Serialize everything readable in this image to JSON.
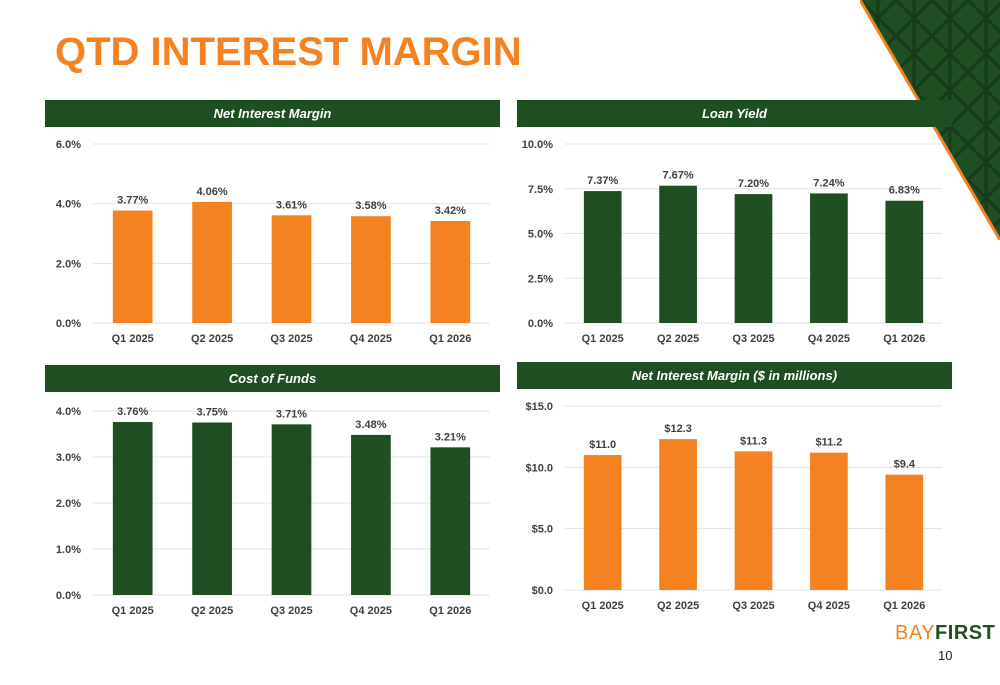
{
  "slide": {
    "title": "QTD INTEREST MARGIN",
    "page_number": "10",
    "logo_part1": "BAY",
    "logo_part2": "FIRST"
  },
  "colors": {
    "orange": "#f58220",
    "green": "#1f4e23"
  },
  "chart_data": [
    {
      "id": "net-interest-margin",
      "type": "bar",
      "title": "Net Interest Margin",
      "categories": [
        "Q1 2025",
        "Q2 2025",
        "Q3 2025",
        "Q4 2025",
        "Q1 2026"
      ],
      "values": [
        3.77,
        4.06,
        3.61,
        3.58,
        3.42
      ],
      "labels": [
        "3.77%",
        "4.06%",
        "3.61%",
        "3.58%",
        "3.42%"
      ],
      "ylim": [
        0,
        6
      ],
      "ticks": [
        0,
        2,
        4,
        6
      ],
      "tick_labels": [
        "0.0%",
        "2.0%",
        "4.0%",
        "6.0%"
      ],
      "color": "#f58220",
      "grid": true
    },
    {
      "id": "loan-yield",
      "type": "bar",
      "title": "Loan Yield",
      "categories": [
        "Q1 2025",
        "Q2 2025",
        "Q3 2025",
        "Q4 2025",
        "Q1 2026"
      ],
      "values": [
        7.37,
        7.67,
        7.2,
        7.24,
        6.83
      ],
      "labels": [
        "7.37%",
        "7.67%",
        "7.20%",
        "7.24%",
        "6.83%"
      ],
      "ylim": [
        0,
        10
      ],
      "ticks": [
        0,
        2.5,
        5,
        7.5,
        10
      ],
      "tick_labels": [
        "0.0%",
        "2.5%",
        "5.0%",
        "7.5%",
        "10.0%"
      ],
      "color": "#1f4e23",
      "grid": true
    },
    {
      "id": "cost-of-funds",
      "type": "bar",
      "title": "Cost of Funds",
      "categories": [
        "Q1 2025",
        "Q2 2025",
        "Q3 2025",
        "Q4 2025",
        "Q1 2026"
      ],
      "values": [
        3.76,
        3.75,
        3.71,
        3.48,
        3.21
      ],
      "labels": [
        "3.76%",
        "3.75%",
        "3.71%",
        "3.48%",
        "3.21%"
      ],
      "ylim": [
        0,
        4
      ],
      "ticks": [
        0,
        1,
        2,
        3,
        4
      ],
      "tick_labels": [
        "0.0%",
        "1.0%",
        "2.0%",
        "3.0%",
        "4.0%"
      ],
      "color": "#1f4e23",
      "grid": true
    },
    {
      "id": "net-interest-margin-dollars",
      "type": "bar",
      "title": "Net Interest Margin ($ in millions)",
      "categories": [
        "Q1 2025",
        "Q2 2025",
        "Q3 2025",
        "Q4 2025",
        "Q1 2026"
      ],
      "values": [
        11.0,
        12.3,
        11.3,
        11.2,
        9.4
      ],
      "labels": [
        "$11.0",
        "$12.3",
        "$11.3",
        "$11.2",
        "$9.4"
      ],
      "ylim": [
        0,
        15
      ],
      "ticks": [
        0,
        5,
        10,
        15
      ],
      "tick_labels": [
        "$0.0",
        "$5.0",
        "$10.0",
        "$15.0"
      ],
      "color": "#f58220",
      "grid": true
    }
  ]
}
